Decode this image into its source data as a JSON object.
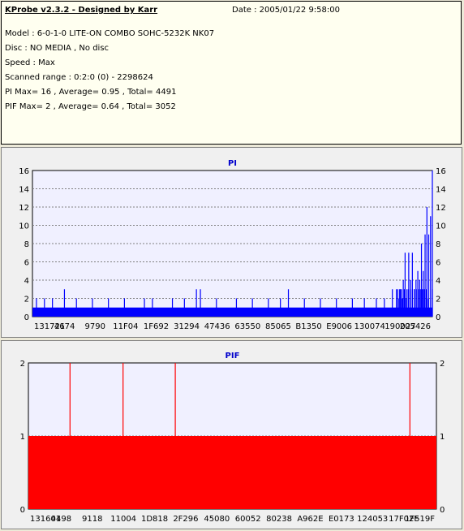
{
  "header": {
    "title": "KProbe v2.3.2 - Designed by Karr",
    "date": "Date : 2005/01/22 9:58:00",
    "lines": [
      "Model : 6-0-1-0 LITE-ON COMBO SOHC-5232K NK07",
      "Disc : NO MEDIA , No disc",
      "Speed : Max",
      "Scanned range : 0:2:0 (0) - 2298624",
      "PI Max= 16 , Average= 0.95 , Total= 4491",
      "PIF Max= 2 , Average= 0.64 , Total= 3052"
    ]
  },
  "colors": {
    "pi": "#0000ff",
    "pif": "#ff0000",
    "plot_bg": "#f0f0ff"
  },
  "chart_data": [
    {
      "type": "bar",
      "title": "PI",
      "ylim": [
        0,
        16
      ],
      "yticks": [
        0,
        2,
        4,
        6,
        8,
        10,
        12,
        14,
        16
      ],
      "xticks": [
        "131721",
        "4674",
        "9790",
        "11F04",
        "1F692",
        "31294",
        "47436",
        "63550",
        "85065",
        "B1350",
        "E9006",
        "130074",
        "190027",
        "205426"
      ],
      "baseline": 1,
      "grid": true,
      "spikes": [
        {
          "x": 0.01,
          "v": 2
        },
        {
          "x": 0.03,
          "v": 2
        },
        {
          "x": 0.05,
          "v": 2
        },
        {
          "x": 0.08,
          "v": 3
        },
        {
          "x": 0.11,
          "v": 2
        },
        {
          "x": 0.15,
          "v": 2
        },
        {
          "x": 0.19,
          "v": 2
        },
        {
          "x": 0.23,
          "v": 2
        },
        {
          "x": 0.28,
          "v": 2
        },
        {
          "x": 0.3,
          "v": 2
        },
        {
          "x": 0.35,
          "v": 2
        },
        {
          "x": 0.38,
          "v": 2
        },
        {
          "x": 0.41,
          "v": 3
        },
        {
          "x": 0.42,
          "v": 3
        },
        {
          "x": 0.46,
          "v": 2
        },
        {
          "x": 0.51,
          "v": 2
        },
        {
          "x": 0.55,
          "v": 2
        },
        {
          "x": 0.59,
          "v": 2
        },
        {
          "x": 0.62,
          "v": 2
        },
        {
          "x": 0.64,
          "v": 3
        },
        {
          "x": 0.68,
          "v": 2
        },
        {
          "x": 0.72,
          "v": 2
        },
        {
          "x": 0.76,
          "v": 2
        },
        {
          "x": 0.8,
          "v": 2
        },
        {
          "x": 0.83,
          "v": 2
        },
        {
          "x": 0.86,
          "v": 2
        },
        {
          "x": 0.88,
          "v": 2
        },
        {
          "x": 0.9,
          "v": 3
        },
        {
          "x": 0.91,
          "v": 3
        },
        {
          "x": 0.915,
          "v": 2
        },
        {
          "x": 0.92,
          "v": 3
        },
        {
          "x": 0.925,
          "v": 2
        },
        {
          "x": 0.93,
          "v": 3
        },
        {
          "x": 0.935,
          "v": 2
        },
        {
          "x": 0.94,
          "v": 3
        },
        {
          "x": 0.945,
          "v": 3
        },
        {
          "x": 0.95,
          "v": 3
        },
        {
          "x": 0.955,
          "v": 3
        },
        {
          "x": 0.96,
          "v": 3
        },
        {
          "x": 0.965,
          "v": 3
        },
        {
          "x": 0.97,
          "v": 3
        },
        {
          "x": 0.975,
          "v": 3
        },
        {
          "x": 0.98,
          "v": 3
        },
        {
          "x": 0.985,
          "v": 3
        },
        {
          "x": 0.99,
          "v": 2
        },
        {
          "x": 1.0,
          "v": 3
        },
        {
          "x": 1.005,
          "v": 3
        },
        {
          "x": 1.01,
          "v": 3
        },
        {
          "x": 1.015,
          "v": 3
        },
        {
          "x": 1.02,
          "v": 4
        },
        {
          "x": 1.025,
          "v": 7
        },
        {
          "x": 1.03,
          "v": 3
        },
        {
          "x": 1.035,
          "v": 7
        },
        {
          "x": 1.04,
          "v": 4
        },
        {
          "x": 1.045,
          "v": 7
        },
        {
          "x": 1.05,
          "v": 3
        },
        {
          "x": 1.055,
          "v": 4
        },
        {
          "x": 1.06,
          "v": 5
        },
        {
          "x": 1.065,
          "v": 4
        },
        {
          "x": 1.07,
          "v": 8
        },
        {
          "x": 1.075,
          "v": 5
        },
        {
          "x": 1.08,
          "v": 9
        },
        {
          "x": 1.085,
          "v": 12
        },
        {
          "x": 1.09,
          "v": 9
        },
        {
          "x": 1.095,
          "v": 11
        },
        {
          "x": 1.1,
          "v": 16
        }
      ]
    },
    {
      "type": "bar",
      "title": "PIF",
      "ylim": [
        0,
        2
      ],
      "yticks": [
        0,
        1,
        2
      ],
      "xticks": [
        "131601",
        "4498",
        "9118",
        "11004",
        "1D818",
        "2F296",
        "45080",
        "60052",
        "80238",
        "A962E",
        "E0173",
        "124053",
        "17F02F",
        "1F519F"
      ],
      "baseline": 1,
      "grid": true,
      "spikes": [
        {
          "x": 0.102,
          "v": 2
        },
        {
          "x": 0.232,
          "v": 2
        },
        {
          "x": 0.36,
          "v": 2
        },
        {
          "x": 0.935,
          "v": 2
        }
      ]
    }
  ]
}
